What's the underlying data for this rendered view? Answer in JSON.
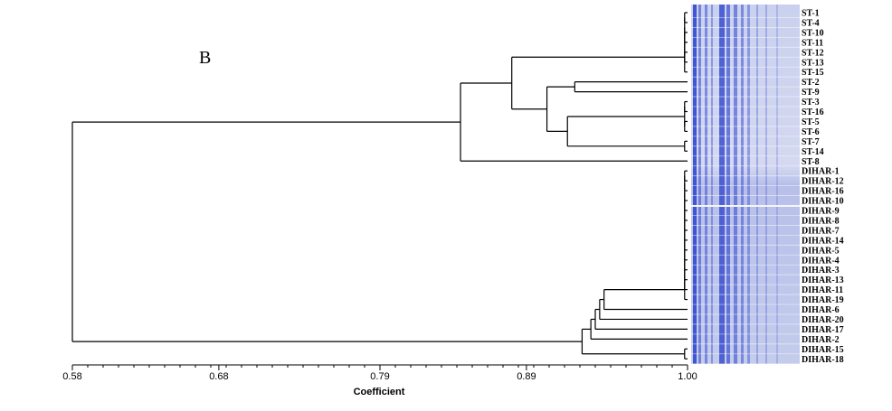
{
  "panel_label": "B",
  "chart_data": {
    "type": "dendrogram",
    "xlabel": "Coefficient",
    "xlim": [
      0.58,
      1.0
    ],
    "ticks": [
      "0.58",
      "0.68",
      "0.79",
      "0.89",
      "1.00"
    ],
    "tick_values": [
      0.58,
      0.68,
      0.79,
      0.89,
      1.0
    ],
    "leaves": [
      "ST-1",
      "ST-4",
      "ST-10",
      "ST-11",
      "ST-12",
      "ST-13",
      "ST-15",
      "ST-2",
      "ST-9",
      "ST-3",
      "ST-16",
      "ST-5",
      "ST-6",
      "ST-7",
      "ST-14",
      "ST-8",
      "DIHAR-1",
      "DIHAR-12",
      "DIHAR-16",
      "DIHAR-10",
      "DIHAR-9",
      "DIHAR-8",
      "DIHAR-7",
      "DIHAR-14",
      "DIHAR-5",
      "DIHAR-4",
      "DIHAR-3",
      "DIHAR-13",
      "DIHAR-11",
      "DIHAR-19",
      "DIHAR-6",
      "DIHAR-20",
      "DIHAR-17",
      "DIHAR-2",
      "DIHAR-15",
      "DIHAR-18"
    ],
    "merges": [
      {
        "a": "ST-1",
        "b": "ST-4",
        "h": 0.998
      },
      {
        "a": "ST-10",
        "b": "ST-11",
        "h": 0.998
      },
      {
        "a": "ST-12",
        "b": "ST-13",
        "h": 0.998
      },
      {
        "a": "ST-5",
        "b": "ST-6",
        "h": 0.998
      },
      {
        "a": "ST-7",
        "b": "ST-14",
        "h": 0.998
      },
      {
        "a": 0,
        "b": 1,
        "h": 0.998
      },
      {
        "a": 5,
        "b": 2,
        "h": 0.998
      },
      {
        "a": 6,
        "b": "ST-15",
        "h": 0.998
      },
      {
        "a": "ST-2",
        "b": "ST-9",
        "h": 0.923
      },
      {
        "a": "ST-3",
        "b": "ST-16",
        "h": 0.998
      },
      {
        "a": 9,
        "b": 3,
        "h": 0.998
      },
      {
        "a": 10,
        "b": 4,
        "h": 0.918
      },
      {
        "a": 8,
        "b": 11,
        "h": 0.904
      },
      {
        "a": 7,
        "b": 12,
        "h": 0.88
      },
      {
        "a": 13,
        "b": "ST-8",
        "h": 0.845
      },
      {
        "a": "DIHAR-1",
        "b": "DIHAR-12",
        "h": 0.998
      },
      {
        "a": 15,
        "b": "DIHAR-16",
        "h": 0.998
      },
      {
        "a": 16,
        "b": "DIHAR-10",
        "h": 0.998
      },
      {
        "a": 17,
        "b": "DIHAR-9",
        "h": 0.998
      },
      {
        "a": 18,
        "b": "DIHAR-8",
        "h": 0.998
      },
      {
        "a": 19,
        "b": "DIHAR-7",
        "h": 0.998
      },
      {
        "a": 20,
        "b": "DIHAR-14",
        "h": 0.998
      },
      {
        "a": 21,
        "b": "DIHAR-5",
        "h": 0.998
      },
      {
        "a": 22,
        "b": "DIHAR-4",
        "h": 0.998
      },
      {
        "a": 23,
        "b": "DIHAR-3",
        "h": 0.998
      },
      {
        "a": 24,
        "b": "DIHAR-13",
        "h": 0.998
      },
      {
        "a": 25,
        "b": "DIHAR-11",
        "h": 0.998
      },
      {
        "a": 26,
        "b": "DIHAR-19",
        "h": 0.998
      },
      {
        "a": 27,
        "b": "DIHAR-6",
        "h": 0.943
      },
      {
        "a": 28,
        "b": "DIHAR-20",
        "h": 0.94
      },
      {
        "a": 29,
        "b": "DIHAR-17",
        "h": 0.937
      },
      {
        "a": 30,
        "b": "DIHAR-2",
        "h": 0.934
      },
      {
        "a": "DIHAR-15",
        "b": "DIHAR-18",
        "h": 0.998
      },
      {
        "a": 31,
        "b": 32,
        "h": 0.928
      },
      {
        "a": 14,
        "b": 33,
        "h": 0.58
      }
    ],
    "gel_colors": {
      "background": "#c9d1ee",
      "lane": "#3a4fd0",
      "dark_band": "#1a2cb0"
    }
  }
}
